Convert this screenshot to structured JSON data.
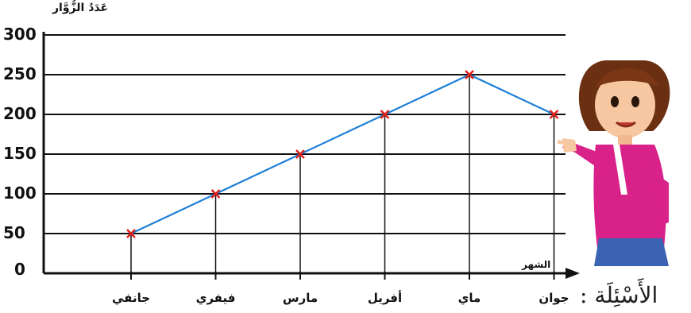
{
  "chart_data": {
    "type": "line",
    "categories": [
      "جانفي",
      "فيفري",
      "مارس",
      "أفريل",
      "ماي",
      "جوان"
    ],
    "series": [
      {
        "values": [
          50,
          100,
          150,
          200,
          250,
          200
        ]
      }
    ],
    "title": "",
    "ylabel": "عَدَدُ الزُّوَّار",
    "xlabel": "الشهر",
    "yticks": [
      0,
      50,
      100,
      150,
      200,
      250,
      300
    ],
    "ylim": [
      0,
      300
    ],
    "grid": true,
    "colors": {
      "line": "#1f7fd6",
      "marker": "#e0201a",
      "axis": "#111111"
    }
  },
  "footer": {
    "questions_label": "الأَسْئِلَة :"
  }
}
